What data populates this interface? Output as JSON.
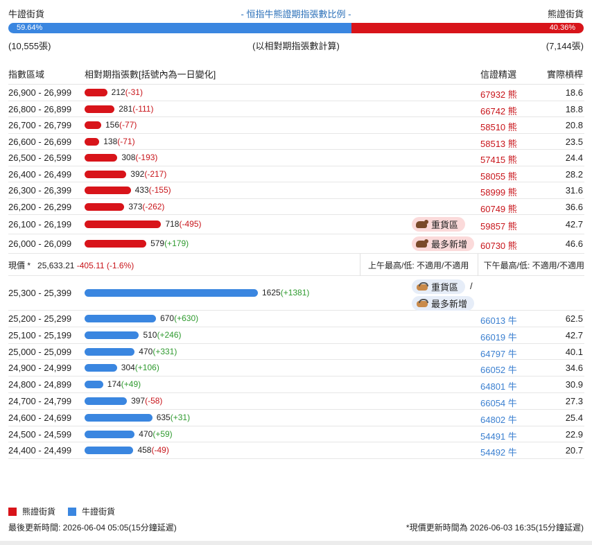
{
  "header": {
    "bull_label": "牛證街貨",
    "bear_label": "熊證街貨",
    "title": "- 恒指牛熊證期指張數比例 -",
    "bull_pct": "59.64%",
    "bear_pct": "40.36%",
    "bull_fraction": 0.5964,
    "bull_count": "(10,555張)",
    "bear_count": "(7,144張)",
    "note": "(以相對期指張數計算)"
  },
  "colors": {
    "bear": "#d8141a",
    "bull": "#3a86e0",
    "bear_text": "#c8141a",
    "bull_text": "#3a7fd0",
    "positive": "#2e9a2e"
  },
  "columns": {
    "range": "指數區域",
    "contracts": "相對期指張數[括號內為一日變化]",
    "warrant": "信證精選",
    "leverage": "實際槓桿"
  },
  "bear_rows": [
    {
      "range": "26,900 - 26,999",
      "value": 212,
      "value_text": "212",
      "change": "(-31)",
      "change_sign": "neg",
      "code": "67932 熊",
      "leverage": "18.6",
      "tag": ""
    },
    {
      "range": "26,800 - 26,899",
      "value": 281,
      "value_text": "281",
      "change": "(-111)",
      "change_sign": "neg",
      "code": "66742 熊",
      "leverage": "18.8",
      "tag": ""
    },
    {
      "range": "26,700 - 26,799",
      "value": 156,
      "value_text": "156",
      "change": "(-77)",
      "change_sign": "neg",
      "code": "58510 熊",
      "leverage": "20.8",
      "tag": ""
    },
    {
      "range": "26,600 - 26,699",
      "value": 138,
      "value_text": "138",
      "change": "(-71)",
      "change_sign": "neg",
      "code": "58513 熊",
      "leverage": "23.5",
      "tag": ""
    },
    {
      "range": "26,500 - 26,599",
      "value": 308,
      "value_text": "308",
      "change": "(-193)",
      "change_sign": "neg",
      "code": "57415 熊",
      "leverage": "24.4",
      "tag": ""
    },
    {
      "range": "26,400 - 26,499",
      "value": 392,
      "value_text": "392",
      "change": "(-217)",
      "change_sign": "neg",
      "code": "58055 熊",
      "leverage": "28.2",
      "tag": ""
    },
    {
      "range": "26,300 - 26,399",
      "value": 433,
      "value_text": "433",
      "change": "(-155)",
      "change_sign": "neg",
      "code": "58999 熊",
      "leverage": "31.6",
      "tag": ""
    },
    {
      "range": "26,200 - 26,299",
      "value": 373,
      "value_text": "373",
      "change": "(-262)",
      "change_sign": "neg",
      "code": "60749 熊",
      "leverage": "36.6",
      "tag": ""
    },
    {
      "range": "26,100 - 26,199",
      "value": 718,
      "value_text": "718",
      "change": "(-495)",
      "change_sign": "neg",
      "code": "59857 熊",
      "leverage": "42.7",
      "tag": "重貨區"
    },
    {
      "range": "26,000 - 26,099",
      "value": 579,
      "value_text": "579",
      "change": "(+179)",
      "change_sign": "pos",
      "code": "60730 熊",
      "leverage": "46.6",
      "tag": "最多新增"
    }
  ],
  "price": {
    "label": "現價 *",
    "value": "25,633.21",
    "change": "-405.11 (-1.6%)",
    "am": "上午最高/低: 不適用/不適用",
    "pm": "下午最高/低: 不適用/不適用"
  },
  "bull_tags": {
    "heavy": "重貨區",
    "most_new": "最多新增",
    "slash": "/"
  },
  "bull_rows": [
    {
      "range": "25,300 - 25,399",
      "value": 1625,
      "value_text": "1625",
      "change": "(+1381)",
      "change_sign": "pos",
      "code": "",
      "leverage": ""
    },
    {
      "range": "25,200 - 25,299",
      "value": 670,
      "value_text": "670",
      "change": "(+630)",
      "change_sign": "pos",
      "code": "66013 牛",
      "leverage": "62.5"
    },
    {
      "range": "25,100 - 25,199",
      "value": 510,
      "value_text": "510",
      "change": "(+246)",
      "change_sign": "pos",
      "code": "66019 牛",
      "leverage": "42.7"
    },
    {
      "range": "25,000 - 25,099",
      "value": 470,
      "value_text": "470",
      "change": "(+331)",
      "change_sign": "pos",
      "code": "64797 牛",
      "leverage": "40.1"
    },
    {
      "range": "24,900 - 24,999",
      "value": 304,
      "value_text": "304",
      "change": "(+106)",
      "change_sign": "pos",
      "code": "66052 牛",
      "leverage": "34.6"
    },
    {
      "range": "24,800 - 24,899",
      "value": 174,
      "value_text": "174",
      "change": "(+49)",
      "change_sign": "pos",
      "code": "64801 牛",
      "leverage": "30.9"
    },
    {
      "range": "24,700 - 24,799",
      "value": 397,
      "value_text": "397",
      "change": "(-58)",
      "change_sign": "neg",
      "code": "66054 牛",
      "leverage": "27.3"
    },
    {
      "range": "24,600 - 24,699",
      "value": 635,
      "value_text": "635",
      "change": "(+31)",
      "change_sign": "pos",
      "code": "64802 牛",
      "leverage": "25.4"
    },
    {
      "range": "24,500 - 24,599",
      "value": 470,
      "value_text": "470",
      "change": "(+59)",
      "change_sign": "pos",
      "code": "54491 牛",
      "leverage": "22.9"
    },
    {
      "range": "24,400 - 24,499",
      "value": 458,
      "value_text": "458",
      "change": "(-49)",
      "change_sign": "neg",
      "code": "54492 牛",
      "leverage": "20.7"
    }
  ],
  "max_value": 1625,
  "legend": {
    "bear": "熊證街貨",
    "bull": "牛證街貨"
  },
  "footer": {
    "left": "最後更新時間: 2026-06-04 05:05(15分鐘延遲)",
    "right": "*現價更新時間為 2026-06-03 16:35(15分鐘延遲)"
  }
}
